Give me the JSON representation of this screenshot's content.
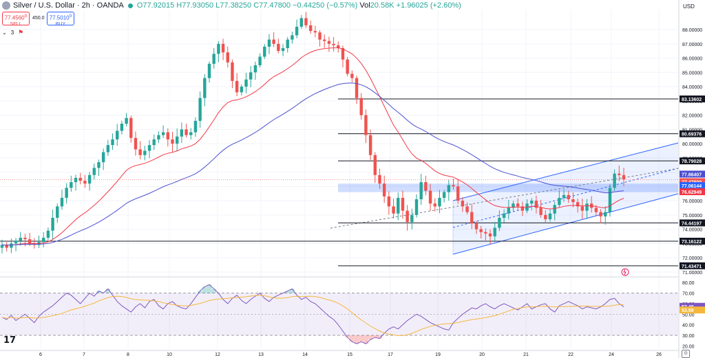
{
  "header": {
    "symbol": "Silver / U.S. Dollar · 2h · OANDA",
    "o": "O77.92015",
    "h": "H77.93050",
    "l": "L77.38250",
    "c": "C77.47800",
    "chg": "−0.44250 (−0.57%)",
    "vol_label": "Vol",
    "vol_value": "20.58K",
    "vol_chg": "+1.96025 (+2.60%)"
  },
  "trade": {
    "sell_price": "77.4560",
    "sell_sup": "0",
    "sell_label": "SELL",
    "spread": "450.0",
    "buy_price": "77.5010",
    "buy_sup": "0",
    "buy_label": "BUY"
  },
  "indicators": {
    "count": "3"
  },
  "axis": {
    "currency": "USD"
  },
  "colors": {
    "up": "#26a69a",
    "down": "#ef5350",
    "ema_fast": "#f23645",
    "ema_slow": "#4b4fcf",
    "channel": "#2962ff",
    "rsi_line": "#7e57c2",
    "rsi_ma": "#f5b73b"
  },
  "chart_data": [
    {
      "type": "candlestick",
      "y_ticks": [
        71.0,
        72.0,
        73.0,
        74.0,
        75.0,
        76.0,
        77.0,
        78.0,
        79.0,
        80.0,
        81.0,
        82.0,
        83.0,
        84.0,
        85.0,
        86.0,
        87.0,
        88.0
      ],
      "x_ticks": [
        "6",
        "7",
        "8",
        "10",
        "12",
        "13",
        "14",
        "15",
        "17",
        "19",
        "20",
        "21",
        "22",
        "24",
        "26"
      ],
      "ylim": [
        70.8,
        89.4
      ],
      "price_path": [
        72.9,
        72.7,
        73.0,
        73.2,
        73.4,
        73.3,
        73.0,
        72.9,
        73.1,
        73.4,
        73.9,
        74.8,
        75.6,
        76.2,
        76.9,
        77.3,
        77.6,
        77.4,
        77.2,
        77.8,
        78.3,
        78.7,
        79.4,
        79.9,
        80.3,
        80.9,
        81.4,
        81.8,
        80.4,
        79.6,
        79.2,
        79.5,
        79.9,
        80.3,
        80.6,
        80.8,
        80.3,
        80.0,
        80.5,
        81.0,
        80.6,
        80.8,
        81.6,
        83.2,
        84.6,
        85.6,
        86.3,
        87.0,
        86.4,
        85.7,
        84.4,
        83.6,
        84.0,
        84.5,
        85.0,
        85.5,
        86.1,
        86.8,
        87.3,
        87.0,
        86.5,
        86.7,
        87.3,
        87.6,
        88.2,
        88.8,
        88.3,
        87.9,
        87.8,
        87.3,
        87.2,
        87.0,
        86.9,
        86.7,
        85.9,
        84.9,
        84.6,
        83.2,
        82.0,
        80.6,
        79.2,
        77.8,
        77.2,
        76.3,
        75.6,
        75.1,
        76.2,
        75.3,
        74.5,
        75.0,
        76.1,
        77.3,
        76.7,
        75.8,
        75.6,
        76.2,
        76.6,
        77.1,
        77.0,
        76.0,
        75.6,
        75.2,
        74.4,
        74.0,
        73.8,
        73.7,
        73.5,
        74.1,
        74.8,
        75.1,
        75.5,
        75.8,
        75.6,
        75.3,
        75.8,
        76.0,
        75.5,
        75.0,
        74.7,
        75.1,
        75.7,
        76.2,
        76.4,
        76.1,
        75.9,
        75.6,
        75.3,
        75.8,
        75.5,
        75.2,
        74.9,
        75.2,
        76.9,
        77.9,
        77.8,
        77.5
      ],
      "levels": [
        {
          "value": 83.13602,
          "label": "83.13602"
        },
        {
          "value": 80.69376,
          "label": "80.69376"
        },
        {
          "value": 78.79028,
          "label": "78.79028"
        },
        {
          "value": 74.44197,
          "label": "74.44197"
        },
        {
          "value": 73.16122,
          "label": "73.16122"
        },
        {
          "value": 71.43471,
          "label": "71.43471"
        }
      ],
      "price_labels": [
        {
          "value": 77.86407,
          "label": "77.86407",
          "color": "#4b4fcf"
        },
        {
          "value": 77.478,
          "label": "77.47800",
          "sub": "25:33",
          "color": "#ef5350"
        },
        {
          "value": 77.06144,
          "label": "77.06144",
          "color": "#2962ff"
        },
        {
          "value": 76.62949,
          "label": "76.62949",
          "color": "#f23645"
        }
      ],
      "zone": [
        76.6,
        77.2
      ],
      "last_price": 77.478
    },
    {
      "type": "line",
      "name": "RSI",
      "y_ticks": [
        20.0,
        30.0,
        40.0,
        50.0,
        60.0,
        70.0,
        80.0
      ],
      "ylim": [
        17,
        84
      ],
      "bands": [
        30,
        70
      ],
      "midline": 50,
      "rsi_path": [
        47,
        45,
        49,
        44,
        47,
        50,
        46,
        42,
        48,
        52,
        55,
        58,
        62,
        66,
        70,
        68,
        64,
        60,
        65,
        70,
        67,
        72,
        70,
        74,
        68,
        62,
        58,
        55,
        52,
        57,
        60,
        56,
        62,
        64,
        58,
        55,
        60,
        62,
        58,
        56,
        55,
        60,
        66,
        72,
        76,
        78,
        74,
        70,
        64,
        60,
        65,
        68,
        63,
        60,
        64,
        67,
        70,
        65,
        62,
        66,
        68,
        70,
        72,
        74,
        68,
        64,
        66,
        62,
        60,
        56,
        52,
        48,
        45,
        40,
        34,
        28,
        24,
        22,
        24,
        22,
        26,
        28,
        27,
        32,
        36,
        38,
        36,
        40,
        44,
        47,
        50,
        48,
        45,
        42,
        40,
        38,
        36,
        35,
        42,
        46,
        50,
        53,
        56,
        55,
        58,
        60,
        57,
        55,
        58,
        60,
        58,
        56,
        54,
        57,
        60,
        55,
        57,
        59,
        60,
        55,
        52,
        58,
        60,
        62,
        60,
        58,
        55,
        57,
        56,
        55,
        57,
        60,
        64,
        65,
        60,
        57
      ],
      "labels": [
        {
          "value": 57.48,
          "label": "57.48",
          "color": "#7e57c2"
        },
        {
          "value": 53.99,
          "label": "53.99",
          "color": "#f5b73b"
        }
      ]
    }
  ]
}
